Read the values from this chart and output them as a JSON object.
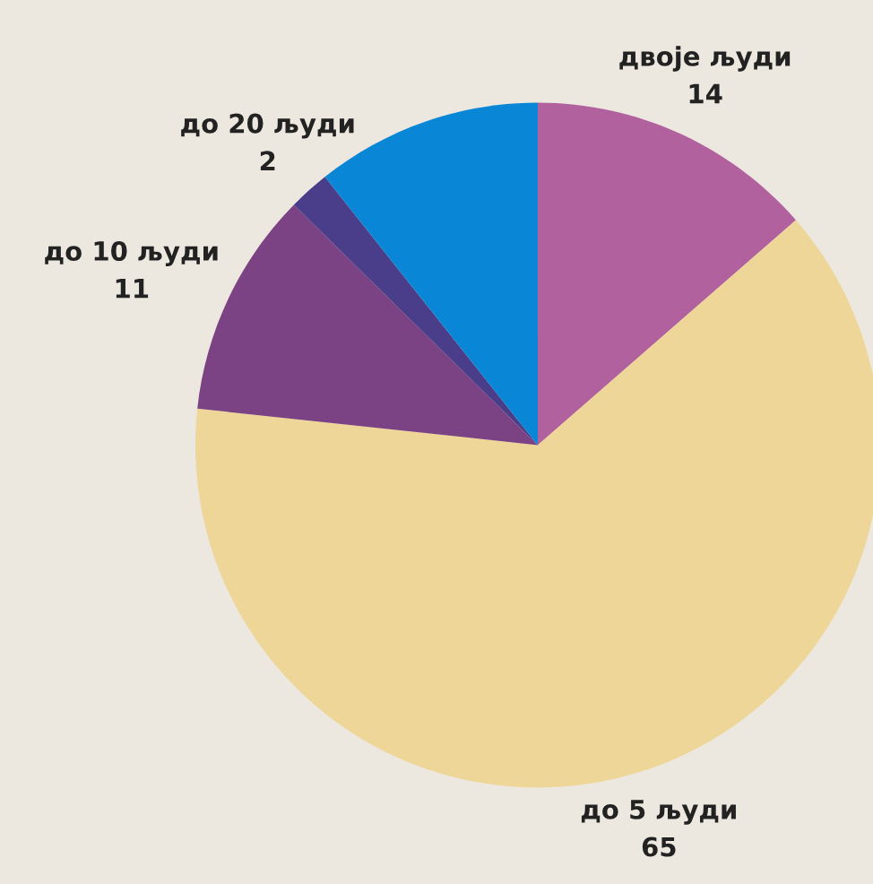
{
  "chart_data": {
    "type": "pie",
    "categories": [
      "двоје људи",
      "до 5 људи",
      "до 10 људи",
      "до 20 људи",
      null
    ],
    "values": [
      14,
      65,
      11,
      2,
      11
    ],
    "value_labels": [
      "14",
      "65",
      "11",
      "2",
      null
    ],
    "colors": [
      "#b0619e",
      "#eed598",
      "#7c4384",
      "#4a3e8a",
      "#0a86d6"
    ]
  }
}
